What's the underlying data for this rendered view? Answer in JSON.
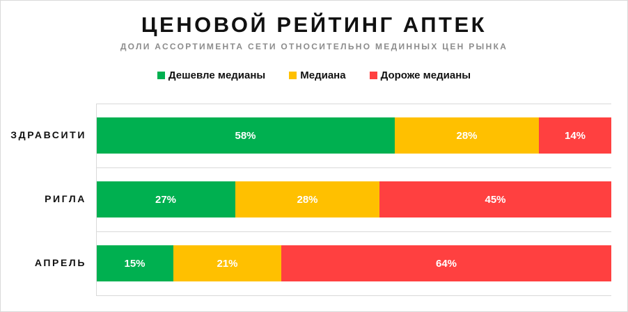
{
  "chart_data": {
    "type": "bar",
    "orientation": "horizontal",
    "stacked": true,
    "title": "ЦЕНОВОЙ РЕЙТИНГ АПТЕК",
    "subtitle": "ДОЛИ АССОРТИМЕНТА СЕТИ ОТНОСИТЕЛЬНО МЕДИННЫХ ЦЕН РЫНКА",
    "categories": [
      "ЗДРАВСИТИ",
      "РИГЛА",
      "АПРЕЛЬ"
    ],
    "series": [
      {
        "name": "Дешевле медианы",
        "color": "#00b050",
        "values": [
          58,
          27,
          15
        ],
        "labels": [
          "58%",
          "27%",
          "15%"
        ]
      },
      {
        "name": "Медиана",
        "color": "#ffc000",
        "values": [
          28,
          28,
          21
        ],
        "labels": [
          "28%",
          "28%",
          "21%"
        ]
      },
      {
        "name": "Дороже медианы",
        "color": "#ff4040",
        "values": [
          14,
          45,
          64
        ],
        "labels": [
          "14%",
          "45%",
          "64%"
        ]
      }
    ],
    "xlim": [
      0,
      100
    ],
    "legend_position": "top",
    "grid": false
  }
}
